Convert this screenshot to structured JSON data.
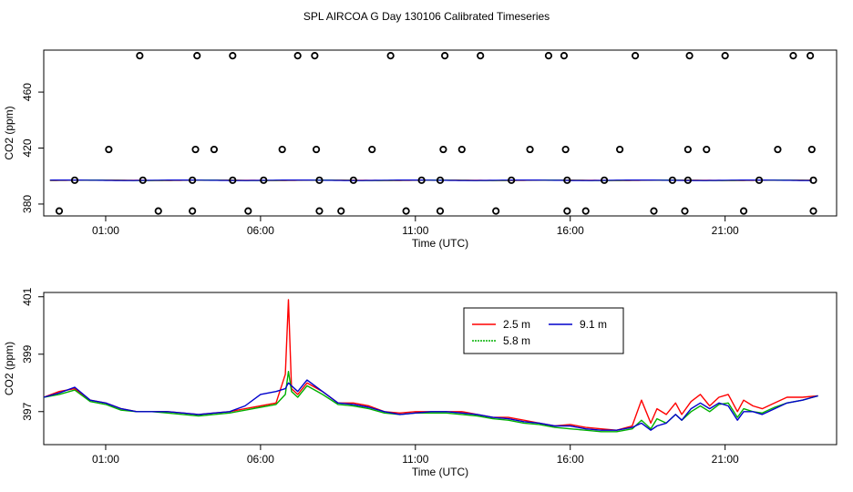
{
  "figure_title": "SPL AIRCOA G  Day 130106  Calibrated Timeseries",
  "chart_data": [
    {
      "type": "scatter",
      "title": "SPL AIRCOA G  Day 130106  Calibrated Timeseries",
      "xlabel": "Time (UTC)",
      "ylabel": "CO2 (ppm)",
      "x_ticks": [
        1,
        6,
        11,
        16,
        21
      ],
      "x_tick_labels": [
        "01:00",
        "06:00",
        "11:00",
        "16:00",
        "21:00"
      ],
      "xlim": [
        -1.0,
        24.6
      ],
      "y_ticks": [
        380,
        420,
        460
      ],
      "y_tick_labels": [
        "380",
        "420",
        "460"
      ],
      "ylim": [
        371.5,
        490
      ],
      "markers": "open-circle",
      "points": [
        [
          -0.5,
          375
        ],
        [
          1.1,
          419
        ],
        [
          2.1,
          486
        ],
        [
          2.7,
          375
        ],
        [
          3.8,
          375
        ],
        [
          3.9,
          419
        ],
        [
          3.95,
          486
        ],
        [
          4.5,
          419
        ],
        [
          5.1,
          486
        ],
        [
          5.6,
          375
        ],
        [
          6.7,
          419
        ],
        [
          7.2,
          486
        ],
        [
          7.75,
          486
        ],
        [
          7.8,
          419
        ],
        [
          7.9,
          375
        ],
        [
          8.6,
          375
        ],
        [
          9.6,
          419
        ],
        [
          10.2,
          486
        ],
        [
          10.7,
          375
        ],
        [
          11.8,
          375
        ],
        [
          11.9,
          419
        ],
        [
          11.95,
          486
        ],
        [
          12.5,
          419
        ],
        [
          13.1,
          486
        ],
        [
          13.6,
          375
        ],
        [
          14.7,
          419
        ],
        [
          15.3,
          486
        ],
        [
          15.8,
          486
        ],
        [
          15.85,
          419
        ],
        [
          15.9,
          375
        ],
        [
          16.5,
          375
        ],
        [
          17.6,
          419
        ],
        [
          18.1,
          486
        ],
        [
          18.7,
          375
        ],
        [
          19.7,
          375
        ],
        [
          19.8,
          419
        ],
        [
          19.85,
          486
        ],
        [
          20.4,
          419
        ],
        [
          21.0,
          486
        ],
        [
          21.6,
          375
        ],
        [
          22.7,
          419
        ],
        [
          23.2,
          486
        ],
        [
          23.75,
          486
        ],
        [
          23.8,
          419
        ],
        [
          23.85,
          375
        ],
        [
          0.0,
          397
        ],
        [
          2.2,
          397
        ],
        [
          3.8,
          397
        ],
        [
          5.1,
          397
        ],
        [
          6.1,
          397
        ],
        [
          7.9,
          397
        ],
        [
          9.0,
          397
        ],
        [
          11.2,
          397
        ],
        [
          11.8,
          397
        ],
        [
          14.1,
          397
        ],
        [
          15.9,
          397
        ],
        [
          17.1,
          397
        ],
        [
          19.3,
          397
        ],
        [
          19.8,
          397
        ],
        [
          22.1,
          397
        ],
        [
          23.85,
          397
        ]
      ],
      "series": [
        {
          "name": "2.5 m",
          "color": "#ff0000"
        },
        {
          "name": "5.8 m",
          "color": "#00b000"
        },
        {
          "name": "9.1 m",
          "color": "#0000cc"
        }
      ]
    },
    {
      "type": "line",
      "xlabel": "Time (UTC)",
      "ylabel": "CO2 (ppm)",
      "x_ticks": [
        1,
        6,
        11,
        16,
        21
      ],
      "x_tick_labels": [
        "01:00",
        "06:00",
        "11:00",
        "16:00",
        "21:00"
      ],
      "xlim": [
        -1.0,
        24.6
      ],
      "y_ticks": [
        397,
        399,
        401
      ],
      "y_tick_labels": [
        "397",
        "399",
        "401"
      ],
      "ylim": [
        395.85,
        401.15
      ],
      "legend": "top-center",
      "x": [
        -1.0,
        -0.5,
        0.0,
        0.5,
        1.0,
        1.5,
        2.0,
        2.5,
        3.0,
        3.5,
        4.0,
        4.5,
        5.0,
        5.5,
        6.0,
        6.5,
        6.8,
        6.9,
        7.0,
        7.2,
        7.5,
        8.0,
        8.5,
        9.0,
        9.5,
        10.0,
        10.5,
        11.0,
        11.5,
        12.0,
        12.5,
        13.0,
        13.5,
        14.0,
        14.5,
        15.0,
        15.5,
        16.0,
        16.5,
        17.0,
        17.5,
        18.0,
        18.3,
        18.6,
        18.8,
        19.1,
        19.4,
        19.6,
        19.9,
        20.2,
        20.5,
        20.8,
        21.1,
        21.4,
        21.6,
        21.9,
        22.2,
        22.6,
        23.0,
        23.5,
        24.0
      ],
      "series": [
        {
          "name": "2.5 m",
          "color": "#ff0000",
          "values": [
            397.5,
            397.7,
            397.8,
            397.4,
            397.3,
            397.1,
            397.0,
            397.0,
            397.0,
            396.95,
            396.9,
            396.95,
            397.0,
            397.1,
            397.2,
            397.3,
            398.3,
            400.9,
            397.8,
            397.6,
            398.0,
            397.7,
            397.3,
            397.3,
            397.2,
            397.0,
            396.95,
            397.0,
            397.0,
            397.0,
            397.0,
            396.9,
            396.8,
            396.8,
            396.7,
            396.6,
            396.5,
            396.55,
            396.45,
            396.4,
            396.35,
            396.5,
            397.4,
            396.6,
            397.1,
            396.9,
            397.3,
            396.9,
            397.35,
            397.6,
            397.2,
            397.5,
            397.6,
            397.0,
            397.4,
            397.2,
            397.1,
            397.3,
            397.5,
            397.5,
            397.55
          ]
        },
        {
          "name": "5.8 m",
          "color": "#00b000",
          "values": [
            397.5,
            397.6,
            397.75,
            397.35,
            397.25,
            397.05,
            397.0,
            397.0,
            396.95,
            396.9,
            396.85,
            396.9,
            396.95,
            397.05,
            397.15,
            397.25,
            397.6,
            398.4,
            397.7,
            397.5,
            397.9,
            397.6,
            397.25,
            397.2,
            397.1,
            396.95,
            396.9,
            396.95,
            396.95,
            396.95,
            396.9,
            396.85,
            396.75,
            396.7,
            396.6,
            396.55,
            396.45,
            396.4,
            396.35,
            396.3,
            396.3,
            396.4,
            396.7,
            396.4,
            396.75,
            396.6,
            396.9,
            396.7,
            397.0,
            397.2,
            397.0,
            397.25,
            397.3,
            396.8,
            397.1,
            397.0,
            396.95,
            397.15,
            397.3,
            397.4,
            397.55
          ]
        },
        {
          "name": "9.1 m",
          "color": "#0000cc",
          "values": [
            397.5,
            397.65,
            397.85,
            397.4,
            397.3,
            397.1,
            397.0,
            397.0,
            397.0,
            396.95,
            396.9,
            396.95,
            397.0,
            397.2,
            397.6,
            397.7,
            397.8,
            398.0,
            397.9,
            397.7,
            398.1,
            397.7,
            397.3,
            397.25,
            397.15,
            397.0,
            396.9,
            396.95,
            397.0,
            397.0,
            396.95,
            396.9,
            396.8,
            396.75,
            396.65,
            396.6,
            396.5,
            396.5,
            396.4,
            396.35,
            396.35,
            396.45,
            396.6,
            396.35,
            396.5,
            396.6,
            396.9,
            396.7,
            397.1,
            397.3,
            397.1,
            397.3,
            397.2,
            396.7,
            397.0,
            397.0,
            396.9,
            397.1,
            397.3,
            397.4,
            397.55
          ]
        }
      ]
    }
  ]
}
